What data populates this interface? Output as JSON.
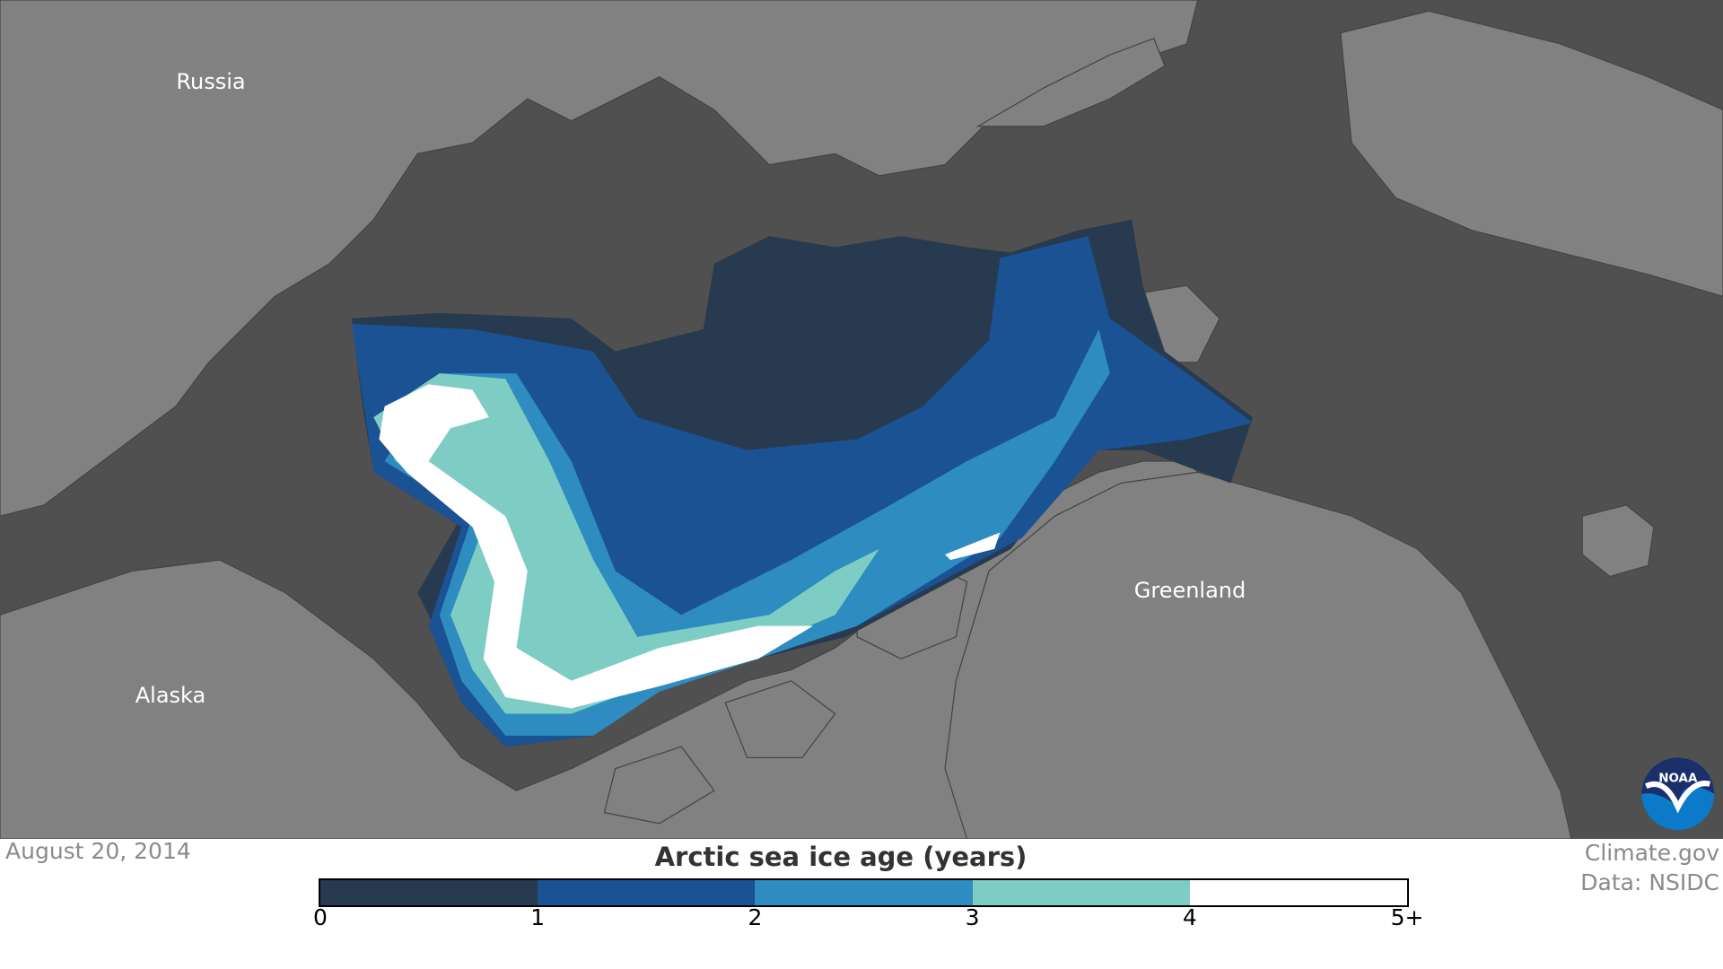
{
  "map": {
    "labels": {
      "russia": "Russia",
      "alaska": "Alaska",
      "greenland": "Greenland"
    },
    "colors": {
      "ocean": "#505050",
      "land": "#818181"
    },
    "logo": "NOAA"
  },
  "footer": {
    "date": "August 20, 2014",
    "credit_source": "Climate.gov",
    "credit_data": "Data: NSIDC"
  },
  "legend": {
    "title": "Arctic sea ice age (years)",
    "bins": [
      {
        "from": 0,
        "to": 1,
        "color": "#283a50"
      },
      {
        "from": 1,
        "to": 2,
        "color": "#1a5294"
      },
      {
        "from": 2,
        "to": 3,
        "color": "#2e8cc0"
      },
      {
        "from": 3,
        "to": 4,
        "color": "#7ecdc5"
      },
      {
        "from": 4,
        "to": "5+",
        "color": "#ffffff"
      }
    ],
    "ticks": [
      "0",
      "1",
      "2",
      "3",
      "4",
      "5+"
    ]
  }
}
